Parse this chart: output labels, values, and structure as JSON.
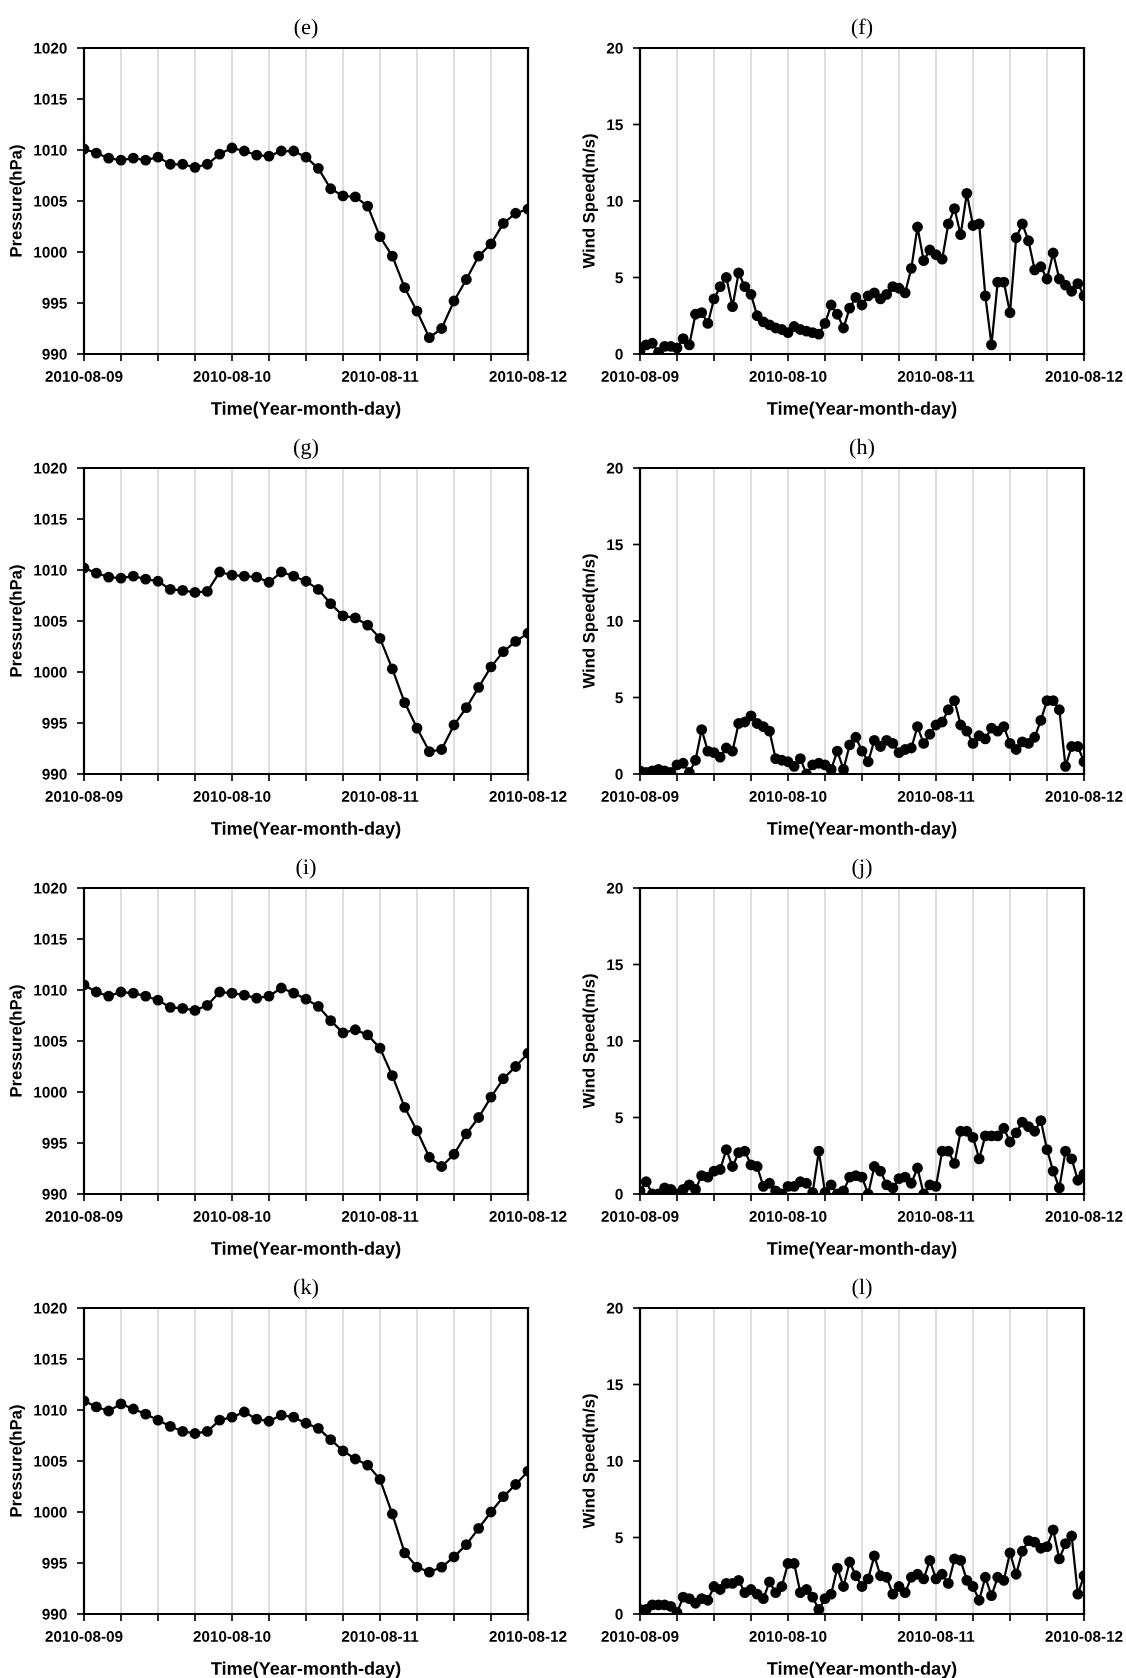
{
  "chart_data": [
    {
      "type": "line",
      "title": "(e)",
      "xlabel": "Time(Year-month-day)",
      "ylabel": "Pressure(hPa)",
      "marker": "circle",
      "line_style": "solid",
      "grid": "x",
      "xlim": [
        "2010-08-09T00:00",
        "2010-08-12T00:00"
      ],
      "xticks": [
        {
          "value": "2010-08-09T00:00",
          "label": "2010-08-09"
        },
        {
          "value": "2010-08-09T06:00",
          "label": null
        },
        {
          "value": "2010-08-09T12:00",
          "label": null
        },
        {
          "value": "2010-08-09T18:00",
          "label": null
        },
        {
          "value": "2010-08-10T00:00",
          "label": "2010-08-10"
        },
        {
          "value": "2010-08-10T06:00",
          "label": null
        },
        {
          "value": "2010-08-10T12:00",
          "label": null
        },
        {
          "value": "2010-08-10T18:00",
          "label": null
        },
        {
          "value": "2010-08-11T00:00",
          "label": "2010-08-11"
        },
        {
          "value": "2010-08-11T06:00",
          "label": null
        },
        {
          "value": "2010-08-11T12:00",
          "label": null
        },
        {
          "value": "2010-08-11T18:00",
          "label": null
        },
        {
          "value": "2010-08-12T00:00",
          "label": "2010-08-12"
        }
      ],
      "ylim": [
        990,
        1020
      ],
      "yticks": [
        990,
        995,
        1000,
        1005,
        1010,
        1015,
        1020
      ],
      "x": [
        "2010-08-09T00:00",
        "2010-08-09T02:00",
        "2010-08-09T04:00",
        "2010-08-09T06:00",
        "2010-08-09T08:00",
        "2010-08-09T10:00",
        "2010-08-09T12:00",
        "2010-08-09T14:00",
        "2010-08-09T16:00",
        "2010-08-09T18:00",
        "2010-08-09T20:00",
        "2010-08-09T22:00",
        "2010-08-10T00:00",
        "2010-08-10T02:00",
        "2010-08-10T04:00",
        "2010-08-10T06:00",
        "2010-08-10T08:00",
        "2010-08-10T10:00",
        "2010-08-10T12:00",
        "2010-08-10T14:00",
        "2010-08-10T16:00",
        "2010-08-10T18:00",
        "2010-08-10T20:00",
        "2010-08-10T22:00",
        "2010-08-11T00:00",
        "2010-08-11T02:00",
        "2010-08-11T04:00",
        "2010-08-11T06:00",
        "2010-08-11T08:00",
        "2010-08-11T10:00",
        "2010-08-11T12:00",
        "2010-08-11T14:00",
        "2010-08-11T16:00",
        "2010-08-11T18:00",
        "2010-08-11T20:00",
        "2010-08-11T22:00",
        "2010-08-12T00:00"
      ],
      "series": [
        {
          "color": "#000000",
          "values": [
            1010.1,
            1009.7,
            1009.2,
            1009.0,
            1009.2,
            1009.0,
            1009.3,
            1008.6,
            1008.6,
            1008.3,
            1008.6,
            1009.6,
            1010.2,
            1009.9,
            1009.5,
            1009.4,
            1009.9,
            1009.9,
            1009.3,
            1008.2,
            1006.2,
            1005.5,
            1005.4,
            1004.5,
            1001.5,
            999.6,
            996.5,
            994.2,
            991.6,
            992.5,
            995.2,
            997.3,
            999.6,
            1000.8,
            1002.8,
            1003.8,
            1004.2
          ]
        }
      ]
    },
    {
      "type": "line",
      "title": "(f)",
      "xlabel": "Time(Year-month-day)",
      "ylabel": "Wind Speed(m/s)",
      "marker": "circle",
      "line_style": "solid",
      "grid": "x",
      "xlim": [
        "2010-08-09T00:00",
        "2010-08-12T00:00"
      ],
      "xticks": [
        {
          "value": "2010-08-09T00:00",
          "label": "2010-08-09"
        },
        {
          "value": "2010-08-09T06:00",
          "label": null
        },
        {
          "value": "2010-08-09T12:00",
          "label": null
        },
        {
          "value": "2010-08-09T18:00",
          "label": null
        },
        {
          "value": "2010-08-10T00:00",
          "label": "2010-08-10"
        },
        {
          "value": "2010-08-10T06:00",
          "label": null
        },
        {
          "value": "2010-08-10T12:00",
          "label": null
        },
        {
          "value": "2010-08-10T18:00",
          "label": null
        },
        {
          "value": "2010-08-11T00:00",
          "label": "2010-08-11"
        },
        {
          "value": "2010-08-11T06:00",
          "label": null
        },
        {
          "value": "2010-08-11T12:00",
          "label": null
        },
        {
          "value": "2010-08-11T18:00",
          "label": null
        },
        {
          "value": "2010-08-12T00:00",
          "label": "2010-08-12"
        }
      ],
      "ylim": [
        0,
        20
      ],
      "yticks": [
        0,
        5,
        10,
        15,
        20
      ],
      "x": [
        "2010-08-09T00:00",
        "2010-08-09T01:00",
        "2010-08-09T02:00",
        "2010-08-09T03:00",
        "2010-08-09T04:00",
        "2010-08-09T05:00",
        "2010-08-09T06:00",
        "2010-08-09T07:00",
        "2010-08-09T08:00",
        "2010-08-09T09:00",
        "2010-08-09T10:00",
        "2010-08-09T11:00",
        "2010-08-09T12:00",
        "2010-08-09T13:00",
        "2010-08-09T14:00",
        "2010-08-09T15:00",
        "2010-08-09T16:00",
        "2010-08-09T17:00",
        "2010-08-09T18:00",
        "2010-08-09T19:00",
        "2010-08-09T20:00",
        "2010-08-09T21:00",
        "2010-08-09T22:00",
        "2010-08-09T23:00",
        "2010-08-10T00:00",
        "2010-08-10T01:00",
        "2010-08-10T02:00",
        "2010-08-10T03:00",
        "2010-08-10T04:00",
        "2010-08-10T05:00",
        "2010-08-10T06:00",
        "2010-08-10T07:00",
        "2010-08-10T08:00",
        "2010-08-10T09:00",
        "2010-08-10T10:00",
        "2010-08-10T11:00",
        "2010-08-10T12:00",
        "2010-08-10T13:00",
        "2010-08-10T14:00",
        "2010-08-10T15:00",
        "2010-08-10T16:00",
        "2010-08-10T17:00",
        "2010-08-10T18:00",
        "2010-08-10T19:00",
        "2010-08-10T20:00",
        "2010-08-10T21:00",
        "2010-08-10T22:00",
        "2010-08-10T23:00",
        "2010-08-11T00:00",
        "2010-08-11T01:00",
        "2010-08-11T02:00",
        "2010-08-11T03:00",
        "2010-08-11T04:00",
        "2010-08-11T05:00",
        "2010-08-11T06:00",
        "2010-08-11T07:00",
        "2010-08-11T08:00",
        "2010-08-11T09:00",
        "2010-08-11T10:00",
        "2010-08-11T11:00",
        "2010-08-11T12:00",
        "2010-08-11T13:00",
        "2010-08-11T14:00",
        "2010-08-11T15:00",
        "2010-08-11T16:00",
        "2010-08-11T17:00",
        "2010-08-11T18:00",
        "2010-08-11T19:00",
        "2010-08-11T20:00",
        "2010-08-11T21:00",
        "2010-08-11T22:00",
        "2010-08-11T23:00",
        "2010-08-12T00:00"
      ],
      "series": [
        {
          "color": "#000000",
          "values": [
            0.2,
            0.6,
            0.7,
            0.1,
            0.5,
            0.5,
            0.4,
            1.0,
            0.6,
            2.6,
            2.7,
            2.0,
            3.6,
            4.4,
            5.0,
            3.1,
            5.3,
            4.4,
            3.9,
            2.5,
            2.1,
            1.9,
            1.7,
            1.6,
            1.4,
            1.8,
            1.6,
            1.5,
            1.4,
            1.3,
            2.0,
            3.2,
            2.6,
            1.7,
            3.0,
            3.7,
            3.2,
            3.8,
            4.0,
            3.6,
            3.9,
            4.4,
            4.3,
            4.0,
            5.6,
            8.3,
            6.1,
            6.8,
            6.5,
            6.2,
            8.5,
            9.5,
            7.8,
            10.5,
            8.4,
            8.5,
            3.8,
            0.6,
            4.7,
            4.7,
            2.7,
            7.6,
            8.5,
            7.4,
            5.5,
            5.7,
            4.9,
            6.6,
            4.9,
            4.5,
            4.1,
            4.6,
            3.8
          ]
        }
      ]
    },
    {
      "type": "line",
      "title": "(g)",
      "xlabel": "Time(Year-month-day)",
      "ylabel": "Pressure(hPa)",
      "marker": "circle",
      "line_style": "solid",
      "grid": "x",
      "xlim": [
        "2010-08-09T00:00",
        "2010-08-12T00:00"
      ],
      "xticks": [
        {
          "value": "2010-08-09T00:00",
          "label": "2010-08-09"
        },
        {
          "value": "2010-08-09T06:00",
          "label": null
        },
        {
          "value": "2010-08-09T12:00",
          "label": null
        },
        {
          "value": "2010-08-09T18:00",
          "label": null
        },
        {
          "value": "2010-08-10T00:00",
          "label": "2010-08-10"
        },
        {
          "value": "2010-08-10T06:00",
          "label": null
        },
        {
          "value": "2010-08-10T12:00",
          "label": null
        },
        {
          "value": "2010-08-10T18:00",
          "label": null
        },
        {
          "value": "2010-08-11T00:00",
          "label": "2010-08-11"
        },
        {
          "value": "2010-08-11T06:00",
          "label": null
        },
        {
          "value": "2010-08-11T12:00",
          "label": null
        },
        {
          "value": "2010-08-11T18:00",
          "label": null
        },
        {
          "value": "2010-08-12T00:00",
          "label": "2010-08-12"
        }
      ],
      "ylim": [
        990,
        1020
      ],
      "yticks": [
        990,
        995,
        1000,
        1005,
        1010,
        1015,
        1020
      ],
      "x": [
        "2010-08-09T00:00",
        "2010-08-09T02:00",
        "2010-08-09T04:00",
        "2010-08-09T06:00",
        "2010-08-09T08:00",
        "2010-08-09T10:00",
        "2010-08-09T12:00",
        "2010-08-09T14:00",
        "2010-08-09T16:00",
        "2010-08-09T18:00",
        "2010-08-09T20:00",
        "2010-08-09T22:00",
        "2010-08-10T00:00",
        "2010-08-10T02:00",
        "2010-08-10T04:00",
        "2010-08-10T06:00",
        "2010-08-10T08:00",
        "2010-08-10T10:00",
        "2010-08-10T12:00",
        "2010-08-10T14:00",
        "2010-08-10T16:00",
        "2010-08-10T18:00",
        "2010-08-10T20:00",
        "2010-08-10T22:00",
        "2010-08-11T00:00",
        "2010-08-11T02:00",
        "2010-08-11T04:00",
        "2010-08-11T06:00",
        "2010-08-11T08:00",
        "2010-08-11T10:00",
        "2010-08-11T12:00",
        "2010-08-11T14:00",
        "2010-08-11T16:00",
        "2010-08-11T18:00",
        "2010-08-11T20:00",
        "2010-08-11T22:00",
        "2010-08-12T00:00"
      ],
      "series": [
        {
          "color": "#000000",
          "values": [
            1010.2,
            1009.7,
            1009.3,
            1009.2,
            1009.4,
            1009.1,
            1008.9,
            1008.1,
            1008.0,
            1007.8,
            1007.9,
            1009.8,
            1009.5,
            1009.4,
            1009.3,
            1008.8,
            1009.8,
            1009.4,
            1008.9,
            1008.1,
            1006.7,
            1005.5,
            1005.3,
            1004.6,
            1003.3,
            1000.3,
            997.0,
            994.5,
            992.2,
            992.4,
            994.8,
            996.5,
            998.5,
            1000.5,
            1002.0,
            1003.0,
            1003.8
          ]
        }
      ]
    },
    {
      "type": "line",
      "title": "(h)",
      "xlabel": "Time(Year-month-day)",
      "ylabel": "Wind Speed(m/s)",
      "marker": "circle",
      "line_style": "solid",
      "grid": "x",
      "xlim": [
        "2010-08-09T00:00",
        "2010-08-12T00:00"
      ],
      "xticks": [
        {
          "value": "2010-08-09T00:00",
          "label": "2010-08-09"
        },
        {
          "value": "2010-08-09T06:00",
          "label": null
        },
        {
          "value": "2010-08-09T12:00",
          "label": null
        },
        {
          "value": "2010-08-09T18:00",
          "label": null
        },
        {
          "value": "2010-08-10T00:00",
          "label": "2010-08-10"
        },
        {
          "value": "2010-08-10T06:00",
          "label": null
        },
        {
          "value": "2010-08-10T12:00",
          "label": null
        },
        {
          "value": "2010-08-10T18:00",
          "label": null
        },
        {
          "value": "2010-08-11T00:00",
          "label": "2010-08-11"
        },
        {
          "value": "2010-08-11T06:00",
          "label": null
        },
        {
          "value": "2010-08-11T12:00",
          "label": null
        },
        {
          "value": "2010-08-11T18:00",
          "label": null
        },
        {
          "value": "2010-08-12T00:00",
          "label": "2010-08-12"
        }
      ],
      "ylim": [
        0,
        20
      ],
      "yticks": [
        0,
        5,
        10,
        15,
        20
      ],
      "x": [
        "2010-08-09T00:00",
        "2010-08-09T01:00",
        "2010-08-09T02:00",
        "2010-08-09T03:00",
        "2010-08-09T04:00",
        "2010-08-09T05:00",
        "2010-08-09T06:00",
        "2010-08-09T07:00",
        "2010-08-09T08:00",
        "2010-08-09T09:00",
        "2010-08-09T10:00",
        "2010-08-09T11:00",
        "2010-08-09T12:00",
        "2010-08-09T13:00",
        "2010-08-09T14:00",
        "2010-08-09T15:00",
        "2010-08-09T16:00",
        "2010-08-09T17:00",
        "2010-08-09T18:00",
        "2010-08-09T19:00",
        "2010-08-09T20:00",
        "2010-08-09T21:00",
        "2010-08-09T22:00",
        "2010-08-09T23:00",
        "2010-08-10T00:00",
        "2010-08-10T01:00",
        "2010-08-10T02:00",
        "2010-08-10T03:00",
        "2010-08-10T04:00",
        "2010-08-10T05:00",
        "2010-08-10T06:00",
        "2010-08-10T07:00",
        "2010-08-10T08:00",
        "2010-08-10T09:00",
        "2010-08-10T10:00",
        "2010-08-10T11:00",
        "2010-08-10T12:00",
        "2010-08-10T13:00",
        "2010-08-10T14:00",
        "2010-08-10T15:00",
        "2010-08-10T16:00",
        "2010-08-10T17:00",
        "2010-08-10T18:00",
        "2010-08-10T19:00",
        "2010-08-10T20:00",
        "2010-08-10T21:00",
        "2010-08-10T22:00",
        "2010-08-10T23:00",
        "2010-08-11T00:00",
        "2010-08-11T01:00",
        "2010-08-11T02:00",
        "2010-08-11T03:00",
        "2010-08-11T04:00",
        "2010-08-11T05:00",
        "2010-08-11T06:00",
        "2010-08-11T07:00",
        "2010-08-11T08:00",
        "2010-08-11T09:00",
        "2010-08-11T10:00",
        "2010-08-11T11:00",
        "2010-08-11T12:00",
        "2010-08-11T13:00",
        "2010-08-11T14:00",
        "2010-08-11T15:00",
        "2010-08-11T16:00",
        "2010-08-11T17:00",
        "2010-08-11T18:00",
        "2010-08-11T19:00",
        "2010-08-11T20:00",
        "2010-08-11T21:00",
        "2010-08-11T22:00",
        "2010-08-11T23:00",
        "2010-08-12T00:00"
      ],
      "series": [
        {
          "color": "#000000",
          "values": [
            0.2,
            0.1,
            0.2,
            0.3,
            0.2,
            0.1,
            0.6,
            0.7,
            0.1,
            0.9,
            2.9,
            1.5,
            1.4,
            1.1,
            1.7,
            1.5,
            3.3,
            3.4,
            3.8,
            3.3,
            3.1,
            2.8,
            1.0,
            0.9,
            0.8,
            0.5,
            1.0,
            0.0,
            0.6,
            0.7,
            0.6,
            0.3,
            1.5,
            0.3,
            1.9,
            2.4,
            1.5,
            0.8,
            2.2,
            1.8,
            2.2,
            2.0,
            1.4,
            1.6,
            1.7,
            3.1,
            2.0,
            2.6,
            3.2,
            3.4,
            4.2,
            4.8,
            3.2,
            2.8,
            2.0,
            2.5,
            2.3,
            3.0,
            2.8,
            3.1,
            2.0,
            1.6,
            2.1,
            2.0,
            2.4,
            3.5,
            4.8,
            4.8,
            4.2,
            0.5,
            1.8,
            1.8,
            0.8
          ]
        }
      ]
    },
    {
      "type": "line",
      "title": "(i)",
      "xlabel": "Time(Year-month-day)",
      "ylabel": "Pressure(hPa)",
      "marker": "circle",
      "line_style": "solid",
      "grid": "x",
      "xlim": [
        "2010-08-09T00:00",
        "2010-08-12T00:00"
      ],
      "xticks": [
        {
          "value": "2010-08-09T00:00",
          "label": "2010-08-09"
        },
        {
          "value": "2010-08-09T06:00",
          "label": null
        },
        {
          "value": "2010-08-09T12:00",
          "label": null
        },
        {
          "value": "2010-08-09T18:00",
          "label": null
        },
        {
          "value": "2010-08-10T00:00",
          "label": "2010-08-10"
        },
        {
          "value": "2010-08-10T06:00",
          "label": null
        },
        {
          "value": "2010-08-10T12:00",
          "label": null
        },
        {
          "value": "2010-08-10T18:00",
          "label": null
        },
        {
          "value": "2010-08-11T00:00",
          "label": "2010-08-11"
        },
        {
          "value": "2010-08-11T06:00",
          "label": null
        },
        {
          "value": "2010-08-11T12:00",
          "label": null
        },
        {
          "value": "2010-08-11T18:00",
          "label": null
        },
        {
          "value": "2010-08-12T00:00",
          "label": "2010-08-12"
        }
      ],
      "ylim": [
        990,
        1020
      ],
      "yticks": [
        990,
        995,
        1000,
        1005,
        1010,
        1015,
        1020
      ],
      "x": [
        "2010-08-09T00:00",
        "2010-08-09T02:00",
        "2010-08-09T04:00",
        "2010-08-09T06:00",
        "2010-08-09T08:00",
        "2010-08-09T10:00",
        "2010-08-09T12:00",
        "2010-08-09T14:00",
        "2010-08-09T16:00",
        "2010-08-09T18:00",
        "2010-08-09T20:00",
        "2010-08-09T22:00",
        "2010-08-10T00:00",
        "2010-08-10T02:00",
        "2010-08-10T04:00",
        "2010-08-10T06:00",
        "2010-08-10T08:00",
        "2010-08-10T10:00",
        "2010-08-10T12:00",
        "2010-08-10T14:00",
        "2010-08-10T16:00",
        "2010-08-10T18:00",
        "2010-08-10T20:00",
        "2010-08-10T22:00",
        "2010-08-11T00:00",
        "2010-08-11T02:00",
        "2010-08-11T04:00",
        "2010-08-11T06:00",
        "2010-08-11T08:00",
        "2010-08-11T10:00",
        "2010-08-11T12:00",
        "2010-08-11T14:00",
        "2010-08-11T16:00",
        "2010-08-11T18:00",
        "2010-08-11T20:00",
        "2010-08-11T22:00",
        "2010-08-12T00:00"
      ],
      "series": [
        {
          "color": "#000000",
          "values": [
            1010.5,
            1009.8,
            1009.4,
            1009.8,
            1009.7,
            1009.4,
            1009.0,
            1008.3,
            1008.2,
            1008.0,
            1008.5,
            1009.8,
            1009.7,
            1009.5,
            1009.2,
            1009.4,
            1010.2,
            1009.7,
            1009.1,
            1008.4,
            1007.0,
            1005.8,
            1006.1,
            1005.6,
            1004.3,
            1001.6,
            998.5,
            996.2,
            993.6,
            992.7,
            993.9,
            995.9,
            997.5,
            999.5,
            1001.3,
            1002.5,
            1003.8
          ]
        }
      ]
    },
    {
      "type": "line",
      "title": "(j)",
      "xlabel": "Time(Year-month-day)",
      "ylabel": "Wind Speed(m/s)",
      "marker": "circle",
      "line_style": "solid",
      "grid": "x",
      "xlim": [
        "2010-08-09T00:00",
        "2010-08-12T00:00"
      ],
      "xticks": [
        {
          "value": "2010-08-09T00:00",
          "label": "2010-08-09"
        },
        {
          "value": "2010-08-09T06:00",
          "label": null
        },
        {
          "value": "2010-08-09T12:00",
          "label": null
        },
        {
          "value": "2010-08-09T18:00",
          "label": null
        },
        {
          "value": "2010-08-10T00:00",
          "label": "2010-08-10"
        },
        {
          "value": "2010-08-10T06:00",
          "label": null
        },
        {
          "value": "2010-08-10T12:00",
          "label": null
        },
        {
          "value": "2010-08-10T18:00",
          "label": null
        },
        {
          "value": "2010-08-11T00:00",
          "label": "2010-08-11"
        },
        {
          "value": "2010-08-11T06:00",
          "label": null
        },
        {
          "value": "2010-08-11T12:00",
          "label": null
        },
        {
          "value": "2010-08-11T18:00",
          "label": null
        },
        {
          "value": "2010-08-12T00:00",
          "label": "2010-08-12"
        }
      ],
      "ylim": [
        0,
        20
      ],
      "yticks": [
        0,
        5,
        10,
        15,
        20
      ],
      "x": [
        "2010-08-09T00:00",
        "2010-08-09T01:00",
        "2010-08-09T02:00",
        "2010-08-09T03:00",
        "2010-08-09T04:00",
        "2010-08-09T05:00",
        "2010-08-09T06:00",
        "2010-08-09T07:00",
        "2010-08-09T08:00",
        "2010-08-09T09:00",
        "2010-08-09T10:00",
        "2010-08-09T11:00",
        "2010-08-09T12:00",
        "2010-08-09T13:00",
        "2010-08-09T14:00",
        "2010-08-09T15:00",
        "2010-08-09T16:00",
        "2010-08-09T17:00",
        "2010-08-09T18:00",
        "2010-08-09T19:00",
        "2010-08-09T20:00",
        "2010-08-09T21:00",
        "2010-08-09T22:00",
        "2010-08-09T23:00",
        "2010-08-10T00:00",
        "2010-08-10T01:00",
        "2010-08-10T02:00",
        "2010-08-10T03:00",
        "2010-08-10T04:00",
        "2010-08-10T05:00",
        "2010-08-10T06:00",
        "2010-08-10T07:00",
        "2010-08-10T08:00",
        "2010-08-10T09:00",
        "2010-08-10T10:00",
        "2010-08-10T11:00",
        "2010-08-10T12:00",
        "2010-08-10T13:00",
        "2010-08-10T14:00",
        "2010-08-10T15:00",
        "2010-08-10T16:00",
        "2010-08-10T17:00",
        "2010-08-10T18:00",
        "2010-08-10T19:00",
        "2010-08-10T20:00",
        "2010-08-10T21:00",
        "2010-08-10T22:00",
        "2010-08-10T23:00",
        "2010-08-11T00:00",
        "2010-08-11T01:00",
        "2010-08-11T02:00",
        "2010-08-11T03:00",
        "2010-08-11T04:00",
        "2010-08-11T05:00",
        "2010-08-11T06:00",
        "2010-08-11T07:00",
        "2010-08-11T08:00",
        "2010-08-11T09:00",
        "2010-08-11T10:00",
        "2010-08-11T11:00",
        "2010-08-11T12:00",
        "2010-08-11T13:00",
        "2010-08-11T14:00",
        "2010-08-11T15:00",
        "2010-08-11T16:00",
        "2010-08-11T17:00",
        "2010-08-11T18:00",
        "2010-08-11T19:00",
        "2010-08-11T20:00",
        "2010-08-11T21:00",
        "2010-08-11T22:00",
        "2010-08-11T23:00",
        "2010-08-12T00:00"
      ],
      "series": [
        {
          "color": "#000000",
          "values": [
            0.2,
            0.8,
            0.0,
            0.0,
            0.4,
            0.3,
            0.0,
            0.3,
            0.6,
            0.3,
            1.2,
            1.1,
            1.5,
            1.6,
            2.9,
            1.8,
            2.7,
            2.8,
            1.9,
            1.8,
            0.5,
            0.7,
            0.2,
            0.0,
            0.5,
            0.5,
            0.8,
            0.7,
            0.1,
            2.8,
            0.1,
            0.6,
            0.0,
            0.2,
            1.1,
            1.2,
            1.1,
            0.0,
            1.8,
            1.5,
            0.6,
            0.4,
            1.0,
            1.1,
            0.7,
            1.7,
            0.0,
            0.6,
            0.5,
            2.8,
            2.8,
            2.0,
            4.1,
            4.1,
            3.7,
            2.3,
            3.8,
            3.8,
            3.8,
            4.3,
            3.4,
            4.0,
            4.7,
            4.4,
            4.1,
            4.8,
            2.9,
            1.5,
            0.4,
            2.8,
            2.3,
            0.9,
            1.3
          ]
        }
      ]
    },
    {
      "type": "line",
      "title": "(k)",
      "xlabel": "Time(Year-month-day)",
      "ylabel": "Pressure(hPa)",
      "marker": "circle",
      "line_style": "solid",
      "grid": "x",
      "xlim": [
        "2010-08-09T00:00",
        "2010-08-12T00:00"
      ],
      "xticks": [
        {
          "value": "2010-08-09T00:00",
          "label": "2010-08-09"
        },
        {
          "value": "2010-08-09T06:00",
          "label": null
        },
        {
          "value": "2010-08-09T12:00",
          "label": null
        },
        {
          "value": "2010-08-09T18:00",
          "label": null
        },
        {
          "value": "2010-08-10T00:00",
          "label": "2010-08-10"
        },
        {
          "value": "2010-08-10T06:00",
          "label": null
        },
        {
          "value": "2010-08-10T12:00",
          "label": null
        },
        {
          "value": "2010-08-10T18:00",
          "label": null
        },
        {
          "value": "2010-08-11T00:00",
          "label": "2010-08-11"
        },
        {
          "value": "2010-08-11T06:00",
          "label": null
        },
        {
          "value": "2010-08-11T12:00",
          "label": null
        },
        {
          "value": "2010-08-11T18:00",
          "label": null
        },
        {
          "value": "2010-08-12T00:00",
          "label": "2010-08-12"
        }
      ],
      "ylim": [
        990,
        1020
      ],
      "yticks": [
        990,
        995,
        1000,
        1005,
        1010,
        1015,
        1020
      ],
      "x": [
        "2010-08-09T00:00",
        "2010-08-09T02:00",
        "2010-08-09T04:00",
        "2010-08-09T06:00",
        "2010-08-09T08:00",
        "2010-08-09T10:00",
        "2010-08-09T12:00",
        "2010-08-09T14:00",
        "2010-08-09T16:00",
        "2010-08-09T18:00",
        "2010-08-09T20:00",
        "2010-08-09T22:00",
        "2010-08-10T00:00",
        "2010-08-10T02:00",
        "2010-08-10T04:00",
        "2010-08-10T06:00",
        "2010-08-10T08:00",
        "2010-08-10T10:00",
        "2010-08-10T12:00",
        "2010-08-10T14:00",
        "2010-08-10T16:00",
        "2010-08-10T18:00",
        "2010-08-10T20:00",
        "2010-08-10T22:00",
        "2010-08-11T00:00",
        "2010-08-11T02:00",
        "2010-08-11T04:00",
        "2010-08-11T06:00",
        "2010-08-11T08:00",
        "2010-08-11T10:00",
        "2010-08-11T12:00",
        "2010-08-11T14:00",
        "2010-08-11T16:00",
        "2010-08-11T18:00",
        "2010-08-11T20:00",
        "2010-08-11T22:00",
        "2010-08-12T00:00"
      ],
      "series": [
        {
          "color": "#000000",
          "values": [
            1010.9,
            1010.3,
            1009.9,
            1010.6,
            1010.1,
            1009.6,
            1009.0,
            1008.4,
            1007.9,
            1007.7,
            1007.9,
            1009.0,
            1009.3,
            1009.8,
            1009.1,
            1008.9,
            1009.5,
            1009.3,
            1008.7,
            1008.2,
            1007.1,
            1006.0,
            1005.2,
            1004.6,
            1003.2,
            999.8,
            996.0,
            994.6,
            994.1,
            994.6,
            995.6,
            996.8,
            998.4,
            1000.0,
            1001.5,
            1002.7,
            1004.0
          ]
        }
      ]
    },
    {
      "type": "line",
      "title": "(l)",
      "xlabel": "Time(Year-month-day)",
      "ylabel": "Wind Speed(m/s)",
      "marker": "circle",
      "line_style": "solid",
      "grid": "x",
      "xlim": [
        "2010-08-09T00:00",
        "2010-08-12T00:00"
      ],
      "xticks": [
        {
          "value": "2010-08-09T00:00",
          "label": "2010-08-09"
        },
        {
          "value": "2010-08-09T06:00",
          "label": null
        },
        {
          "value": "2010-08-09T12:00",
          "label": null
        },
        {
          "value": "2010-08-09T18:00",
          "label": null
        },
        {
          "value": "2010-08-10T00:00",
          "label": "2010-08-10"
        },
        {
          "value": "2010-08-10T06:00",
          "label": null
        },
        {
          "value": "2010-08-10T12:00",
          "label": null
        },
        {
          "value": "2010-08-10T18:00",
          "label": null
        },
        {
          "value": "2010-08-11T00:00",
          "label": "2010-08-11"
        },
        {
          "value": "2010-08-11T06:00",
          "label": null
        },
        {
          "value": "2010-08-11T12:00",
          "label": null
        },
        {
          "value": "2010-08-11T18:00",
          "label": null
        },
        {
          "value": "2010-08-12T00:00",
          "label": "2010-08-12"
        }
      ],
      "ylim": [
        0,
        20
      ],
      "yticks": [
        0,
        5,
        10,
        15,
        20
      ],
      "x": [
        "2010-08-09T00:00",
        "2010-08-09T01:00",
        "2010-08-09T02:00",
        "2010-08-09T03:00",
        "2010-08-09T04:00",
        "2010-08-09T05:00",
        "2010-08-09T06:00",
        "2010-08-09T07:00",
        "2010-08-09T08:00",
        "2010-08-09T09:00",
        "2010-08-09T10:00",
        "2010-08-09T11:00",
        "2010-08-09T12:00",
        "2010-08-09T13:00",
        "2010-08-09T14:00",
        "2010-08-09T15:00",
        "2010-08-09T16:00",
        "2010-08-09T17:00",
        "2010-08-09T18:00",
        "2010-08-09T19:00",
        "2010-08-09T20:00",
        "2010-08-09T21:00",
        "2010-08-09T22:00",
        "2010-08-09T23:00",
        "2010-08-10T00:00",
        "2010-08-10T01:00",
        "2010-08-10T02:00",
        "2010-08-10T03:00",
        "2010-08-10T04:00",
        "2010-08-10T05:00",
        "2010-08-10T06:00",
        "2010-08-10T07:00",
        "2010-08-10T08:00",
        "2010-08-10T09:00",
        "2010-08-10T10:00",
        "2010-08-10T11:00",
        "2010-08-10T12:00",
        "2010-08-10T13:00",
        "2010-08-10T14:00",
        "2010-08-10T15:00",
        "2010-08-10T16:00",
        "2010-08-10T17:00",
        "2010-08-10T18:00",
        "2010-08-10T19:00",
        "2010-08-10T20:00",
        "2010-08-10T21:00",
        "2010-08-10T22:00",
        "2010-08-10T23:00",
        "2010-08-11T00:00",
        "2010-08-11T01:00",
        "2010-08-11T02:00",
        "2010-08-11T03:00",
        "2010-08-11T04:00",
        "2010-08-11T05:00",
        "2010-08-11T06:00",
        "2010-08-11T07:00",
        "2010-08-11T08:00",
        "2010-08-11T09:00",
        "2010-08-11T10:00",
        "2010-08-11T11:00",
        "2010-08-11T12:00",
        "2010-08-11T13:00",
        "2010-08-11T14:00",
        "2010-08-11T15:00",
        "2010-08-11T16:00",
        "2010-08-11T17:00",
        "2010-08-11T18:00",
        "2010-08-11T19:00",
        "2010-08-11T20:00",
        "2010-08-11T21:00",
        "2010-08-11T22:00",
        "2010-08-11T23:00",
        "2010-08-12T00:00"
      ],
      "series": [
        {
          "color": "#000000",
          "values": [
            0.3,
            0.3,
            0.6,
            0.6,
            0.6,
            0.5,
            0.1,
            1.1,
            1.0,
            0.7,
            1.0,
            0.9,
            1.8,
            1.6,
            2.0,
            2.0,
            2.2,
            1.4,
            1.6,
            1.3,
            1.0,
            2.1,
            1.4,
            1.8,
            3.3,
            3.3,
            1.4,
            1.6,
            1.1,
            0.3,
            1.0,
            1.3,
            3.0,
            1.8,
            3.4,
            2.5,
            1.8,
            2.3,
            3.8,
            2.5,
            2.4,
            1.3,
            1.8,
            1.4,
            2.4,
            2.6,
            2.3,
            3.5,
            2.3,
            2.6,
            2.0,
            3.6,
            3.5,
            2.2,
            1.8,
            0.9,
            2.4,
            1.2,
            2.4,
            2.2,
            4.0,
            2.6,
            4.1,
            4.8,
            4.7,
            4.3,
            4.4,
            5.5,
            3.6,
            4.6,
            5.1,
            1.3,
            2.5
          ]
        }
      ]
    }
  ]
}
